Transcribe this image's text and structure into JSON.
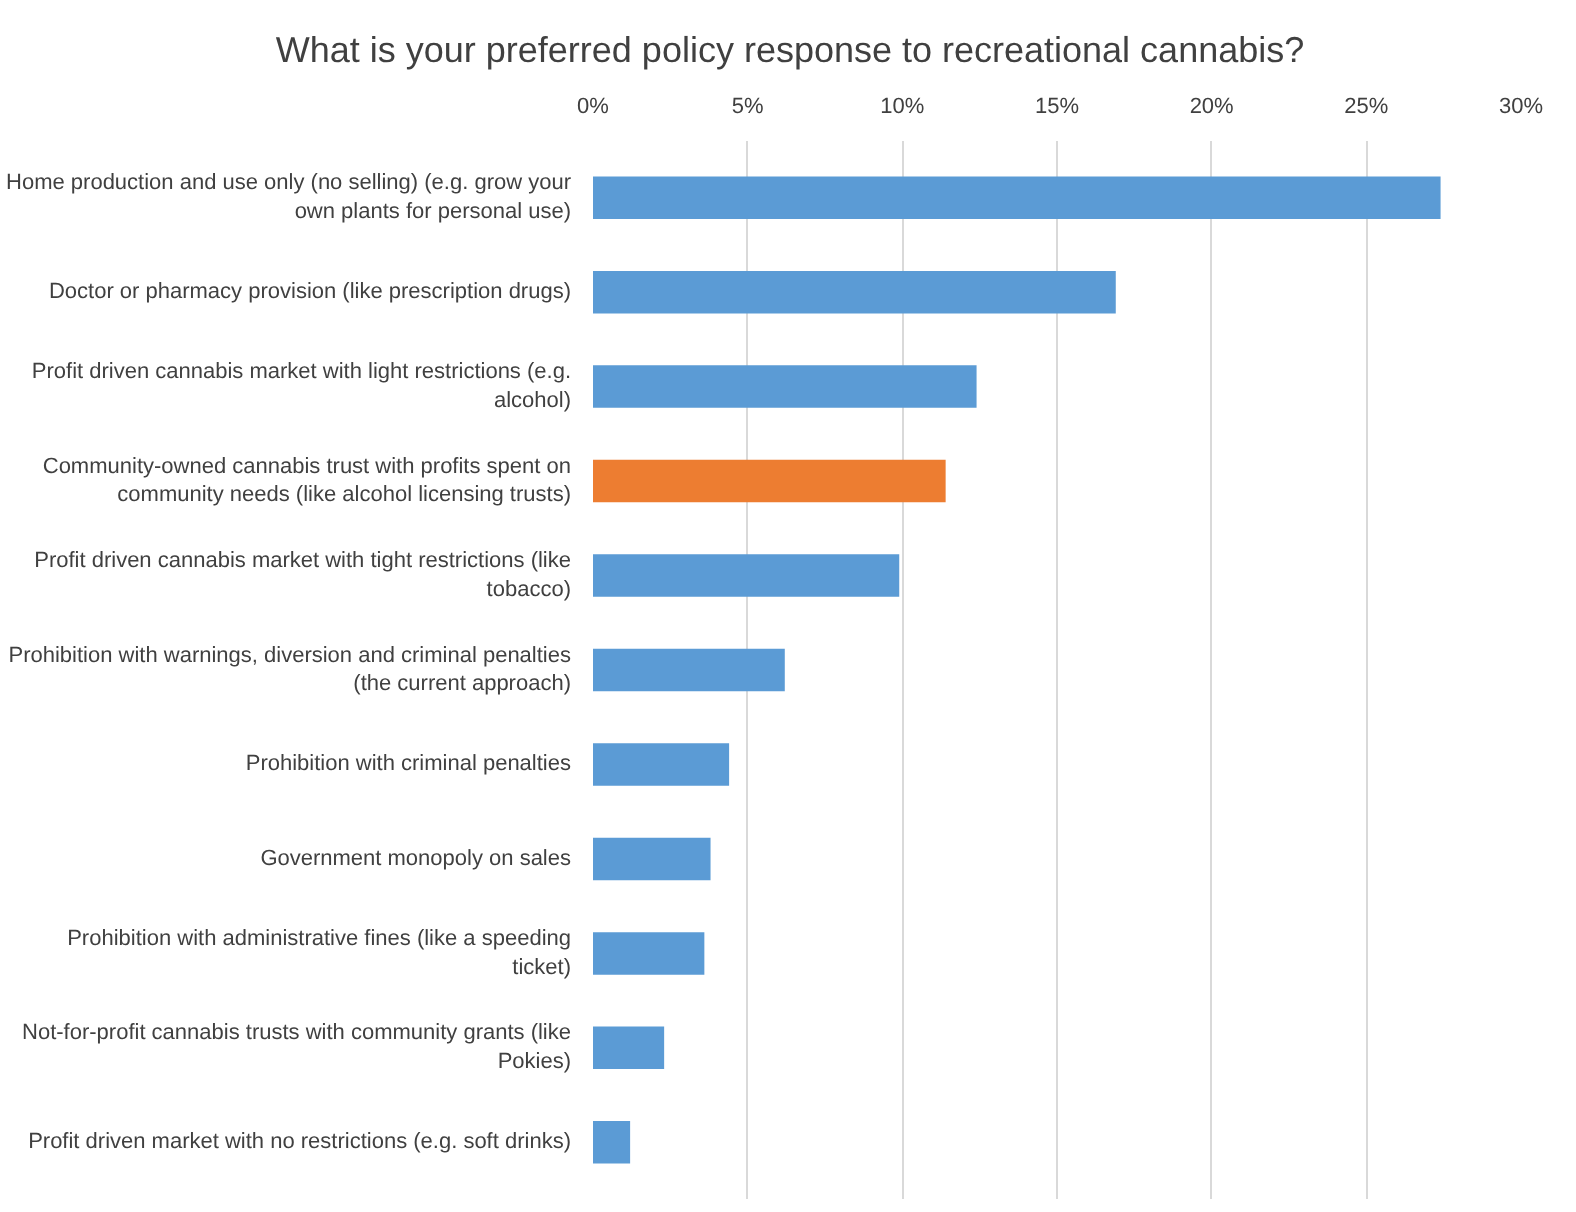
{
  "chart_data": {
    "type": "bar",
    "orientation": "horizontal",
    "title": "What is your preferred policy response to recreational cannabis?",
    "categories": [
      "Home production and use only (no selling) (e.g. grow your own plants for personal use)",
      "Doctor or pharmacy provision (like prescription drugs)",
      "Profit driven cannabis market with light restrictions (e.g. alcohol)",
      "Community-owned cannabis trust with profits spent on community needs (like alcohol licensing trusts)",
      "Profit driven cannabis market with tight restrictions (like tobacco)",
      "Prohibition with warnings, diversion and criminal penalties (the current approach)",
      "Prohibition with criminal penalties",
      "Government monopoly on sales",
      "Prohibition with administrative fines (like a speeding ticket)",
      "Not-for-profit cannabis trusts with community grants (like Pokies)",
      "Profit driven market with no restrictions (e.g. soft drinks)"
    ],
    "values": [
      27.4,
      16.9,
      12.4,
      11.4,
      9.9,
      6.2,
      4.4,
      3.8,
      3.6,
      2.3,
      1.2
    ],
    "colors": [
      "#5b9bd5",
      "#5b9bd5",
      "#5b9bd5",
      "#ed7d31",
      "#5b9bd5",
      "#5b9bd5",
      "#5b9bd5",
      "#5b9bd5",
      "#5b9bd5",
      "#5b9bd5",
      "#5b9bd5"
    ],
    "xlim": [
      0,
      30
    ],
    "xticks": [
      {
        "value": 0,
        "label": "0%"
      },
      {
        "value": 5,
        "label": "5%"
      },
      {
        "value": 10,
        "label": "10%"
      },
      {
        "value": 15,
        "label": "15%"
      },
      {
        "value": 20,
        "label": "20%"
      },
      {
        "value": 25,
        "label": "25%"
      },
      {
        "value": 30,
        "label": "30%"
      }
    ],
    "grid": "x"
  }
}
